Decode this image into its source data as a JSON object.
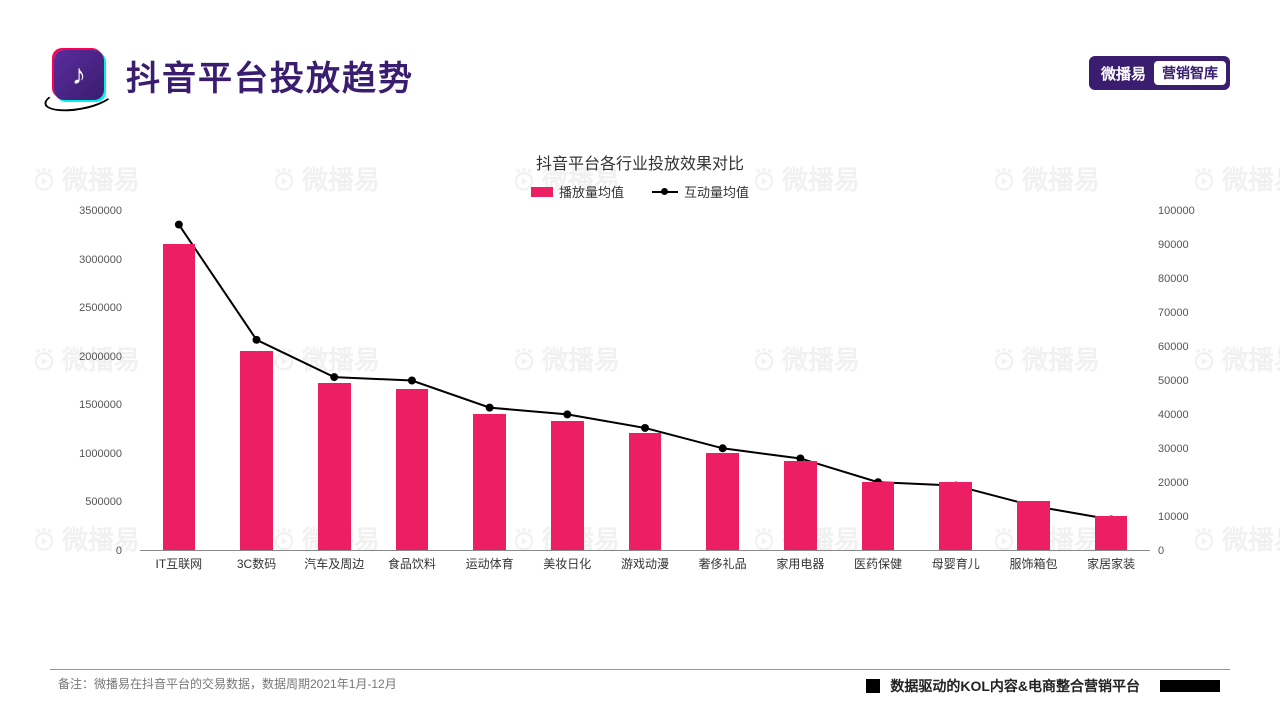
{
  "header": {
    "title": "抖音平台投放趋势",
    "brand_left": "微播易",
    "brand_right": "营销智库"
  },
  "watermark_text": "微播易",
  "chart": {
    "type": "bar+line",
    "title": "抖音平台各行业投放效果对比",
    "legend_bar": "播放量均值",
    "legend_line": "互动量均值",
    "bar_color": "#ec1e64",
    "line_color": "#000000",
    "background_color": "#ffffff",
    "categories": [
      "IT互联网",
      "3C数码",
      "汽车及周边",
      "食品饮料",
      "运动体育",
      "美妆日化",
      "游戏动漫",
      "奢侈礼品",
      "家用电器",
      "医药保健",
      "母婴育儿",
      "服饰箱包",
      "家居家装"
    ],
    "bar_values": [
      3150000,
      2050000,
      1720000,
      1660000,
      1400000,
      1330000,
      1200000,
      1000000,
      920000,
      700000,
      700000,
      500000,
      350000
    ],
    "line_values": [
      96000,
      62000,
      51000,
      50000,
      42000,
      40000,
      36000,
      30000,
      27000,
      20000,
      19000,
      13000,
      9000
    ],
    "y_left": {
      "min": 0,
      "max": 3500000,
      "step": 500000
    },
    "y_right": {
      "min": 0,
      "max": 100000,
      "step": 10000
    },
    "bar_width_ratio": 0.42,
    "title_fontsize": 16,
    "axis_fontsize": 11,
    "label_fontsize": 12
  },
  "footer": {
    "note": "备注：微播易在抖音平台的交易数据，数据周期2021年1月-12月",
    "right_text": "数据驱动的KOL内容&电商整合营销平台"
  }
}
